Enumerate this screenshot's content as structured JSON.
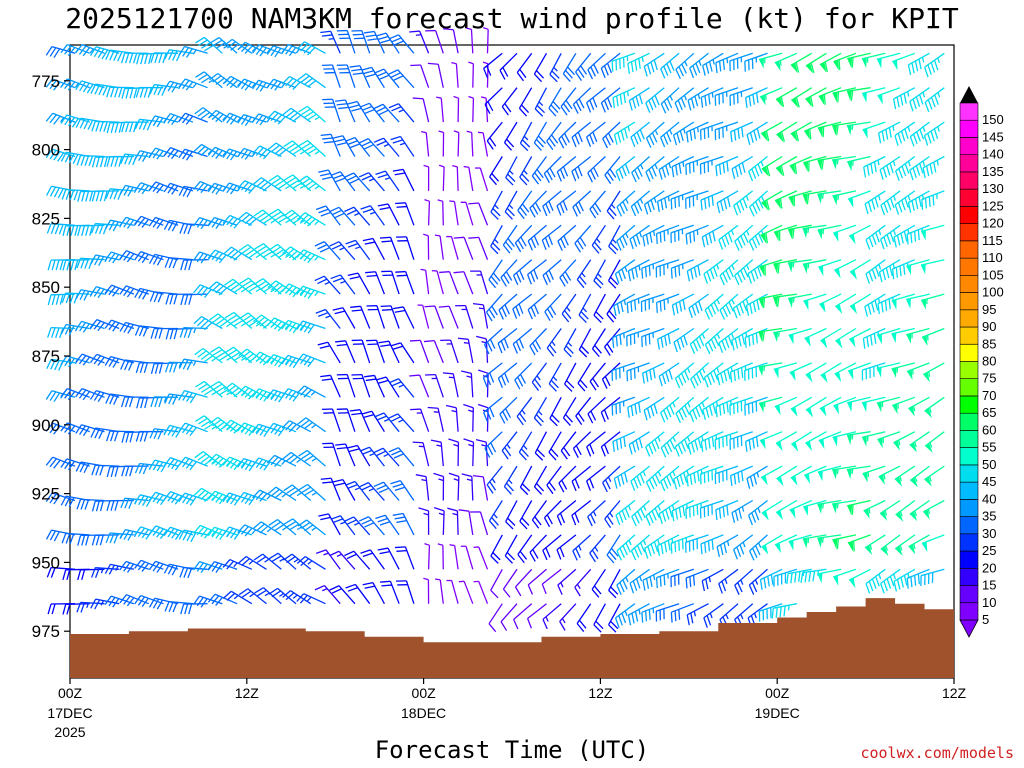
{
  "title": "2025121700 NAM3KM forecast wind profile (kt) for KPIT",
  "credit": "coolwx.com/models",
  "chart_data": {
    "type": "wind-barb-profile",
    "xlabel": "Forecast Time (UTC)",
    "ylabel": "",
    "y_ticks": [
      775,
      800,
      825,
      850,
      875,
      900,
      925,
      950,
      975
    ],
    "y_range_hpa": [
      992,
      762
    ],
    "x_range_hours": [
      0,
      60
    ],
    "x_ticks": [
      {
        "hour": 0,
        "label": "00Z",
        "sub1": "17DEC",
        "sub2": "2025"
      },
      {
        "hour": 12,
        "label": "12Z",
        "sub1": "",
        "sub2": ""
      },
      {
        "hour": 24,
        "label": "00Z",
        "sub1": "18DEC",
        "sub2": ""
      },
      {
        "hour": 36,
        "label": "12Z",
        "sub1": "",
        "sub2": ""
      },
      {
        "hour": 48,
        "label": "00Z",
        "sub1": "19DEC",
        "sub2": ""
      },
      {
        "hour": 60,
        "label": "12Z",
        "sub1": "",
        "sub2": ""
      }
    ],
    "colorbar_unit": "kt",
    "colorbar_levels": [
      5,
      10,
      15,
      20,
      25,
      30,
      35,
      40,
      45,
      50,
      55,
      60,
      65,
      70,
      75,
      80,
      85,
      90,
      95,
      100,
      105,
      110,
      115,
      120,
      125,
      130,
      135,
      140,
      145,
      150
    ],
    "colorbar_colors": [
      "#8000ff",
      "#6600ff",
      "#3300ff",
      "#0000ff",
      "#0033ff",
      "#0066ff",
      "#0099ff",
      "#00bbff",
      "#00ddee",
      "#00ffcc",
      "#00ff99",
      "#00ff66",
      "#00ff00",
      "#66ff00",
      "#99ff00",
      "#ffff00",
      "#ffcc00",
      "#ffaa00",
      "#ff9900",
      "#ff8800",
      "#ff7700",
      "#ff6600",
      "#ff3300",
      "#ff0000",
      "#ff0033",
      "#ff0066",
      "#ff0099",
      "#ff00cc",
      "#ff00ff",
      "#ff33ff"
    ],
    "terrain_color": "#a0522d",
    "surface_pressure_hpa": [
      {
        "hour": 0,
        "p": 976
      },
      {
        "hour": 4,
        "p": 975
      },
      {
        "hour": 8,
        "p": 974
      },
      {
        "hour": 12,
        "p": 974
      },
      {
        "hour": 16,
        "p": 975
      },
      {
        "hour": 20,
        "p": 977
      },
      {
        "hour": 24,
        "p": 979
      },
      {
        "hour": 28,
        "p": 979
      },
      {
        "hour": 32,
        "p": 977
      },
      {
        "hour": 36,
        "p": 976
      },
      {
        "hour": 40,
        "p": 975
      },
      {
        "hour": 44,
        "p": 972
      },
      {
        "hour": 48,
        "p": 970
      },
      {
        "hour": 50,
        "p": 968
      },
      {
        "hour": 52,
        "p": 966
      },
      {
        "hour": 54,
        "p": 963
      },
      {
        "hour": 56,
        "p": 965
      },
      {
        "hour": 58,
        "p": 967
      },
      {
        "hour": 60,
        "p": 967
      }
    ],
    "wind_regimes": [
      {
        "from_hour": 0,
        "to_hour": 10,
        "dir_deg": 280,
        "speed_kt": 35
      },
      {
        "from_hour": 10,
        "to_hour": 18,
        "dir_deg": 300,
        "speed_kt": 40
      },
      {
        "from_hour": 18,
        "to_hour": 24,
        "dir_deg": 330,
        "speed_kt": 25
      },
      {
        "from_hour": 24,
        "to_hour": 29,
        "dir_deg": 350,
        "speed_kt": 10
      },
      {
        "from_hour": 29,
        "to_hour": 38,
        "dir_deg": 220,
        "speed_kt": 25
      },
      {
        "from_hour": 38,
        "to_hour": 48,
        "dir_deg": 240,
        "speed_kt": 40
      },
      {
        "from_hour": 48,
        "to_hour": 55,
        "dir_deg": 250,
        "speed_kt": 55
      },
      {
        "from_hour": 55,
        "to_hour": 60,
        "dir_deg": 245,
        "speed_kt": 50
      }
    ]
  }
}
